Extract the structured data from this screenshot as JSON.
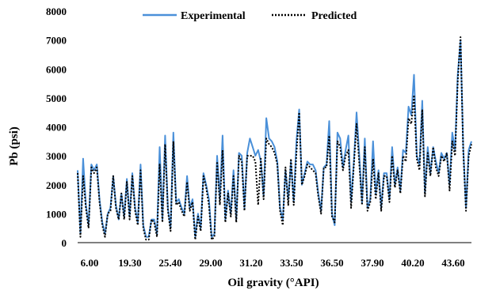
{
  "chart_data": {
    "type": "line",
    "xlabel": "Oil gravity (°API)",
    "ylabel": "Pb (psi)",
    "ylim": [
      0,
      8000
    ],
    "y_ticks": [
      0,
      1000,
      2000,
      3000,
      4000,
      5000,
      6000,
      7000,
      8000
    ],
    "x_tick_labels": [
      "6.00",
      "19.30",
      "25.40",
      "29.00",
      "31.20",
      "33.50",
      "36.50",
      "37.90",
      "40.20",
      "43.60"
    ],
    "grid": false,
    "legend_position": "top",
    "series": [
      {
        "name": "Experimental",
        "style": "solid",
        "color": "#4a90d9",
        "values": [
          2500,
          300,
          2900,
          1300,
          600,
          2700,
          2500,
          2700,
          1500,
          700,
          300,
          1000,
          1200,
          2300,
          1300,
          800,
          1700,
          900,
          2200,
          900,
          2400,
          1200,
          700,
          2700,
          600,
          200,
          200,
          800,
          800,
          300,
          3300,
          800,
          3700,
          1200,
          500,
          3800,
          1400,
          1500,
          1200,
          1000,
          2300,
          1200,
          1500,
          200,
          1000,
          500,
          2400,
          2000,
          1500,
          200,
          300,
          3000,
          1500,
          3700,
          800,
          1800,
          1000,
          2500,
          800,
          3100,
          3000,
          1200,
          3100,
          3600,
          3300,
          3000,
          3200,
          2800,
          1600,
          4300,
          3600,
          3500,
          3300,
          2800,
          1200,
          800,
          2500,
          1500,
          2800,
          1400,
          3500,
          4600,
          2000,
          2400,
          2800,
          2700,
          2700,
          2500,
          1700,
          1100,
          2600,
          2700,
          4200,
          1000,
          600,
          3800,
          3600,
          2600,
          3200,
          3700,
          1400,
          2800,
          4500,
          3000,
          1400,
          3600,
          1200,
          1500,
          3500,
          1700,
          2500,
          1200,
          2400,
          2400,
          1500,
          3300,
          2000,
          2600,
          1800,
          3200,
          3100,
          4700,
          4400,
          5800,
          3000,
          2700,
          4900,
          1700,
          3300,
          2400,
          3300,
          2800,
          2400,
          3100,
          2900,
          3100,
          2000,
          3800,
          3200,
          5800,
          7000,
          3300,
          1200,
          3200,
          3500
        ]
      },
      {
        "name": "Predicted",
        "style": "dotted",
        "color": "#000000",
        "values": [
          2400,
          200,
          2300,
          1200,
          500,
          2600,
          2400,
          2600,
          1400,
          600,
          200,
          1000,
          1100,
          2300,
          1200,
          800,
          1700,
          800,
          2100,
          800,
          2300,
          1100,
          600,
          2500,
          500,
          100,
          100,
          800,
          700,
          200,
          2700,
          700,
          3400,
          1100,
          400,
          3500,
          1300,
          1400,
          1100,
          900,
          2100,
          1100,
          1400,
          100,
          900,
          400,
          2300,
          1900,
          1300,
          100,
          200,
          2800,
          1300,
          3200,
          700,
          1700,
          900,
          2300,
          700,
          3000,
          2800,
          1100,
          3000,
          3000,
          3000,
          2800,
          1300,
          2900,
          1500,
          3600,
          3400,
          3300,
          3100,
          2700,
          1100,
          600,
          2600,
          1300,
          2900,
          1300,
          3100,
          4500,
          2000,
          2300,
          2700,
          2600,
          2500,
          2400,
          1600,
          1000,
          2600,
          2600,
          3700,
          900,
          700,
          3500,
          3300,
          2500,
          3000,
          3200,
          1200,
          2700,
          4100,
          2700,
          1300,
          3300,
          1100,
          1400,
          2900,
          1500,
          2400,
          1100,
          2300,
          2300,
          1400,
          3000,
          1900,
          2500,
          1700,
          3000,
          2800,
          4300,
          4100,
          5100,
          2900,
          2500,
          4600,
          1600,
          3100,
          2300,
          3300,
          2600,
          2300,
          3000,
          2800,
          3100,
          1800,
          3500,
          3000,
          5600,
          7100,
          3200,
          1100,
          3000,
          3400
        ]
      }
    ]
  }
}
